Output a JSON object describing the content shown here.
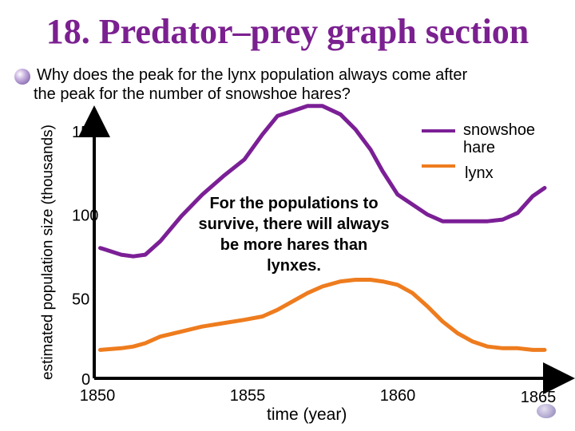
{
  "slide": {
    "title": "18.  Predator–prey graph section",
    "question_line1": "Why does the peak for the lynx population always come after",
    "question_line2": "the peak for the number of snowshoe hares?",
    "note": "For the populations to survive, there will always be more hares than lynxes."
  },
  "colors": {
    "title": "#7b2090",
    "hare": "#7b1f96",
    "lynx": "#ee7c1e"
  },
  "chart_data": {
    "type": "line",
    "xlabel": "time (year)",
    "ylabel": "estimated population size (thousands)",
    "xlim": [
      1850,
      1865
    ],
    "ylim": [
      0,
      150
    ],
    "x_ticks": [
      {
        "label": "1850",
        "value": 1850
      },
      {
        "label": "1855",
        "value": 1855
      },
      {
        "label": "1860",
        "value": 1860
      },
      {
        "label": "1865",
        "value": 1865
      }
    ],
    "y_ticks": [
      {
        "label": "0",
        "value": 0
      },
      {
        "label": "50",
        "value": 50
      },
      {
        "label": "100",
        "value": 100
      },
      {
        "label": "150",
        "value": 150
      }
    ],
    "legend": "top-right",
    "series": [
      {
        "name": "snowshoe hare",
        "color": "#7b1f96",
        "x": [
          1850.2,
          1850.9,
          1851.3,
          1851.7,
          1852.2,
          1852.9,
          1853.6,
          1854.3,
          1855.0,
          1855.6,
          1856.1,
          1856.6,
          1857.1,
          1857.6,
          1858.2,
          1858.7,
          1859.2,
          1859.6,
          1860.1,
          1860.6,
          1861.1,
          1861.6,
          1862.1,
          1862.6,
          1863.1,
          1863.6,
          1864.1,
          1864.6,
          1865.0
        ],
        "y": [
          78,
          74,
          73,
          74,
          82,
          97,
          110,
          121,
          131,
          146,
          157,
          160,
          163,
          163,
          158,
          149,
          137,
          124,
          110,
          104,
          98,
          94,
          94,
          94,
          94,
          95,
          99,
          109,
          114
        ]
      },
      {
        "name": "lynx",
        "color": "#ee7c1e",
        "x": [
          1850.2,
          1850.9,
          1851.3,
          1851.7,
          1852.2,
          1852.9,
          1853.6,
          1854.3,
          1855.0,
          1855.6,
          1856.1,
          1856.6,
          1857.1,
          1857.6,
          1858.2,
          1858.7,
          1859.2,
          1859.6,
          1860.1,
          1860.6,
          1861.1,
          1861.6,
          1862.1,
          1862.6,
          1863.1,
          1863.6,
          1864.1,
          1864.6,
          1865.0
        ],
        "y": [
          17,
          18,
          19,
          21,
          25,
          28,
          31,
          33,
          35,
          37,
          41,
          46,
          51,
          55,
          58,
          59,
          59,
          58,
          56,
          51,
          43,
          34,
          27,
          22,
          19,
          18,
          18,
          17,
          17
        ]
      }
    ]
  }
}
